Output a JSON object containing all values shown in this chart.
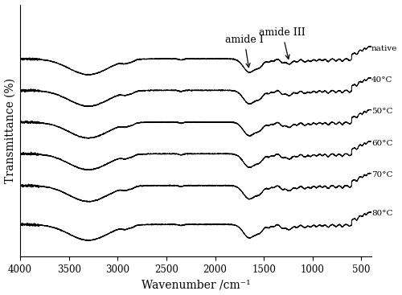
{
  "xlabel": "Wavenumber /cm⁻¹",
  "ylabel": "Transmittance (%)",
  "x_min": 4000,
  "x_max": 400,
  "labels": [
    "native",
    "40°C",
    "50°C",
    "60°C",
    "70°C",
    "80°C"
  ],
  "offsets": [
    5.0,
    4.1,
    3.2,
    2.3,
    1.4,
    0.3
  ],
  "annotation1": "amide I",
  "annotation2": "amide III",
  "background_color": "#ffffff",
  "line_color": "#000000",
  "xticks": [
    4000,
    3500,
    3000,
    2500,
    2000,
    1500,
    1000,
    500
  ],
  "figsize": [
    5.0,
    3.67
  ],
  "dpi": 100
}
